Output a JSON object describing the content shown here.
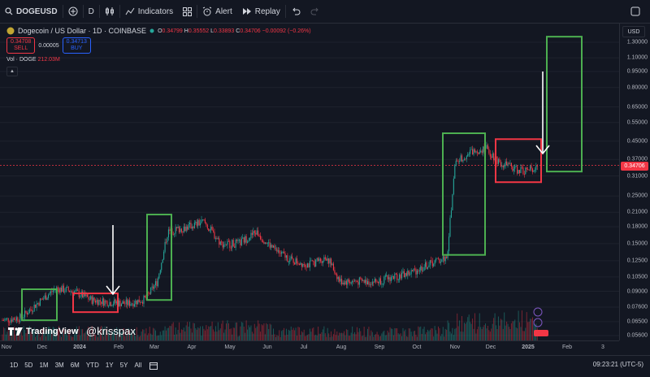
{
  "toolbar": {
    "symbol": "DOGEUSD",
    "interval": "D",
    "indicators": "Indicators",
    "alert": "Alert",
    "replay": "Replay"
  },
  "legend": {
    "title": "Dogecoin / US Dollar · 1D · COINBASE",
    "o_label": "O",
    "o": "0.34799",
    "h_label": "H",
    "h": "0.35552",
    "l_label": "L",
    "l": "0.33893",
    "c_label": "C",
    "c": "0.34706",
    "change": "−0.00092 (−0.26%)"
  },
  "trade": {
    "sell_price": "0.34708",
    "sell_label": "SELL",
    "spread": "0.00005",
    "buy_price": "0.34713",
    "buy_label": "BUY"
  },
  "volume": {
    "label": "Vol · DOGE",
    "value": "212.03M"
  },
  "axis": {
    "currency": "USD",
    "price_ticks": [
      "1.30000",
      "1.10000",
      "0.95000",
      "0.80000",
      "0.65000",
      "0.55000",
      "0.45000",
      "0.37000",
      "0.31000",
      "0.25000",
      "0.21000",
      "0.18000",
      "0.15000",
      "0.12500",
      "0.10500",
      "0.09000",
      "0.07600",
      "0.06500",
      "0.05600"
    ],
    "last_price": "0.34706",
    "time_ticks": [
      "Nov",
      "Dec",
      "2024",
      "Feb",
      "Mar",
      "Apr",
      "May",
      "Jun",
      "Jul",
      "Aug",
      "Sep",
      "Oct",
      "Nov",
      "Dec",
      "2025",
      "Feb",
      "3"
    ]
  },
  "ranges": [
    "1D",
    "5D",
    "1M",
    "3M",
    "6M",
    "YTD",
    "1Y",
    "5Y",
    "All"
  ],
  "clock": "09:23:21 (UTC-5)",
  "watermark": {
    "brand": "TradingView",
    "handle": "@krisspax"
  },
  "colors": {
    "up": "#26a69a",
    "down": "#f23645",
    "green_box": "#4caf50",
    "red_box": "#f23645",
    "bg": "#131722"
  },
  "chart_data": {
    "type": "line",
    "title": "Dogecoin / US Dollar · 1D · COINBASE",
    "x": [
      "2023-10-20",
      "2023-11-05",
      "2023-11-20",
      "2023-12-05",
      "2023-12-20",
      "2024-01-05",
      "2024-01-20",
      "2024-02-05",
      "2024-02-20",
      "2024-03-01",
      "2024-03-10",
      "2024-03-28",
      "2024-04-10",
      "2024-04-25",
      "2024-05-10",
      "2024-05-25",
      "2024-06-10",
      "2024-06-25",
      "2024-07-10",
      "2024-07-25",
      "2024-08-05",
      "2024-08-20",
      "2024-09-05",
      "2024-09-20",
      "2024-10-05",
      "2024-10-20",
      "2024-11-05",
      "2024-11-12",
      "2024-11-25",
      "2024-12-08",
      "2024-12-20",
      "2025-01-05",
      "2025-01-15",
      "2025-01-22"
    ],
    "series": [
      {
        "name": "DOGEUSD",
        "values": [
          0.066,
          0.068,
          0.08,
          0.093,
          0.09,
          0.082,
          0.08,
          0.079,
          0.083,
          0.1,
          0.17,
          0.18,
          0.19,
          0.15,
          0.15,
          0.17,
          0.14,
          0.125,
          0.12,
          0.13,
          0.1,
          0.1,
          0.1,
          0.105,
          0.11,
          0.12,
          0.13,
          0.36,
          0.4,
          0.42,
          0.36,
          0.33,
          0.33,
          0.35
        ]
      }
    ],
    "ylim": [
      0.05,
      1.4
    ],
    "log_scale": true,
    "annotations": [
      "green box Nov 2023",
      "red box Jan 2024",
      "green box Feb-Mar 2024",
      "green box Nov 2024",
      "red box Dec 2024-Jan 2025",
      "green box Jan-Feb 2025"
    ]
  }
}
